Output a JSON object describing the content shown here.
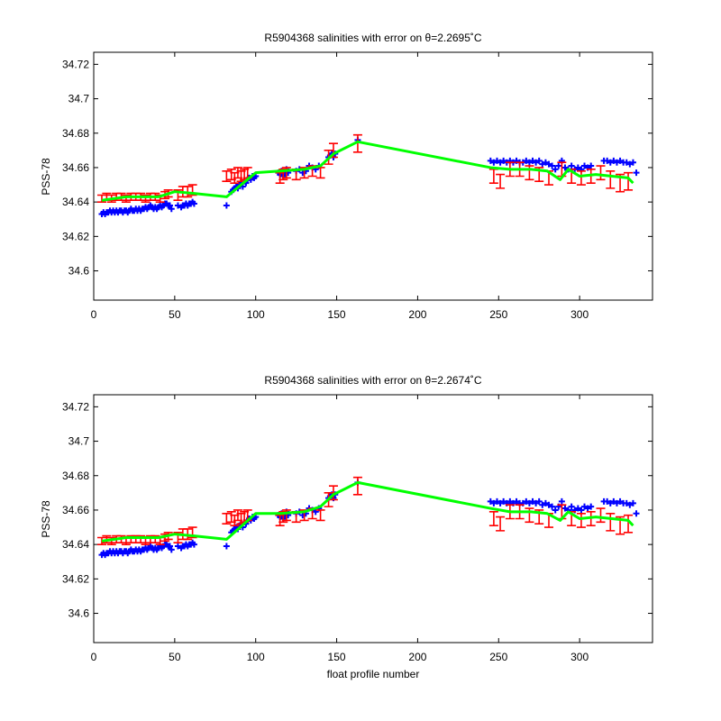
{
  "colors": {
    "background": "#ffffff",
    "axes": "#000000",
    "uncalibrated": "#0000ff",
    "calibrated": "#ff0000",
    "fit": "#00ff00"
  },
  "chart_data": [
    {
      "type": "scatter",
      "title": "R5904368 salinities with error on θ=2.2695˚C",
      "xlabel": "",
      "ylabel": "PSS-78",
      "xlim": [
        0,
        345
      ],
      "ylim": [
        34.583,
        34.727
      ],
      "xticks": [
        0,
        50,
        100,
        150,
        200,
        250,
        300
      ],
      "yticks": [
        34.6,
        34.62,
        34.64,
        34.66,
        34.68,
        34.7,
        34.72
      ],
      "xtick_labels": [
        "0",
        "50",
        "100",
        "150",
        "200",
        "250",
        "300"
      ],
      "ytick_labels": [
        "34.6",
        "34.62",
        "34.64",
        "34.66",
        "34.68",
        "34.7",
        "34.72"
      ],
      "grid": false,
      "series": [
        {
          "marker": "plus",
          "color": "#0000ff",
          "x": [
            5,
            6,
            7,
            8,
            9,
            10,
            11,
            12,
            13,
            14,
            15,
            16,
            17,
            18,
            19,
            20,
            21,
            22,
            23,
            24,
            25,
            26,
            27,
            28,
            29,
            30,
            31,
            32,
            33,
            34,
            35,
            36,
            37,
            38,
            39,
            40,
            41,
            42,
            43,
            44,
            45,
            46,
            47,
            48,
            52,
            54,
            55,
            56,
            57,
            58,
            59,
            60,
            61,
            62,
            82,
            85,
            86,
            87,
            88,
            89,
            90,
            91,
            92,
            93,
            94,
            95,
            96,
            97,
            98,
            99,
            100,
            114,
            115,
            116,
            117,
            118,
            119,
            120,
            125,
            127,
            129,
            131,
            133,
            135,
            137,
            139,
            145,
            146,
            147,
            148,
            149,
            163,
            245,
            247,
            249,
            251,
            253,
            255,
            257,
            259,
            261,
            263,
            265,
            267,
            269,
            271,
            273,
            275,
            277,
            279,
            281,
            283,
            285,
            287,
            289,
            291,
            293,
            295,
            297,
            299,
            301,
            303,
            305,
            307,
            315,
            317,
            319,
            321,
            323,
            325,
            327,
            329,
            331,
            333,
            335
          ],
          "y": [
            34.633,
            34.634,
            34.633,
            34.634,
            34.634,
            34.635,
            34.634,
            34.635,
            34.634,
            34.635,
            34.634,
            34.635,
            34.635,
            34.634,
            34.635,
            34.635,
            34.634,
            34.635,
            34.636,
            34.635,
            34.635,
            34.636,
            34.635,
            34.636,
            34.635,
            34.636,
            34.636,
            34.637,
            34.636,
            34.637,
            34.638,
            34.637,
            34.636,
            34.637,
            34.636,
            34.637,
            34.638,
            34.637,
            34.638,
            34.639,
            34.639,
            34.638,
            34.638,
            34.636,
            34.638,
            34.637,
            34.638,
            34.638,
            34.639,
            34.638,
            34.639,
            34.639,
            34.64,
            34.639,
            34.638,
            34.646,
            34.647,
            34.648,
            34.649,
            34.648,
            34.65,
            34.651,
            34.649,
            34.652,
            34.651,
            34.653,
            34.654,
            34.653,
            34.655,
            34.654,
            34.655,
            34.657,
            34.656,
            34.658,
            34.655,
            34.657,
            34.659,
            34.657,
            34.658,
            34.659,
            34.657,
            34.658,
            34.661,
            34.66,
            34.659,
            34.661,
            34.666,
            34.667,
            34.668,
            34.666,
            34.668,
            34.676,
            34.664,
            34.663,
            34.664,
            34.663,
            34.664,
            34.663,
            34.664,
            34.663,
            34.664,
            34.663,
            34.663,
            34.664,
            34.663,
            34.664,
            34.663,
            34.664,
            34.662,
            34.663,
            34.662,
            34.661,
            34.659,
            34.661,
            34.664,
            34.66,
            34.659,
            34.661,
            34.659,
            34.66,
            34.659,
            34.661,
            34.66,
            34.661,
            34.664,
            34.664,
            34.663,
            34.664,
            34.663,
            34.664,
            34.663,
            34.663,
            34.662,
            34.663,
            34.657
          ]
        },
        {
          "type": "errorbar",
          "color": "#ff0000",
          "x": [
            5,
            8,
            11,
            14,
            17,
            20,
            23,
            26,
            29,
            32,
            35,
            38,
            41,
            44,
            46,
            52,
            55,
            58,
            61,
            82,
            85,
            87,
            89,
            91,
            93,
            95,
            115,
            117,
            119,
            125,
            130,
            135,
            140,
            145,
            148,
            163,
            247,
            251,
            257,
            263,
            269,
            275,
            281,
            289,
            295,
            301,
            307,
            313,
            319,
            325,
            330
          ],
          "y": [
            34.642,
            34.643,
            34.642,
            34.643,
            34.643,
            34.642,
            34.643,
            34.643,
            34.643,
            34.642,
            34.643,
            34.643,
            34.642,
            34.644,
            34.645,
            34.644,
            34.646,
            34.646,
            34.647,
            34.655,
            34.656,
            34.654,
            34.657,
            34.655,
            34.656,
            34.657,
            34.654,
            34.656,
            34.657,
            34.656,
            34.657,
            34.658,
            34.657,
            34.666,
            34.67,
            34.674,
            34.655,
            34.652,
            34.659,
            34.659,
            34.657,
            34.656,
            34.654,
            34.659,
            34.655,
            34.654,
            34.655,
            34.657,
            34.653,
            34.651,
            34.652
          ],
          "err": [
            0.002,
            0.002,
            0.002,
            0.002,
            0.002,
            0.002,
            0.002,
            0.002,
            0.002,
            0.002,
            0.002,
            0.002,
            0.002,
            0.002,
            0.002,
            0.003,
            0.003,
            0.003,
            0.003,
            0.003,
            0.003,
            0.003,
            0.003,
            0.003,
            0.003,
            0.003,
            0.003,
            0.003,
            0.003,
            0.003,
            0.003,
            0.003,
            0.003,
            0.004,
            0.004,
            0.005,
            0.004,
            0.004,
            0.004,
            0.004,
            0.004,
            0.004,
            0.004,
            0.004,
            0.004,
            0.004,
            0.004,
            0.004,
            0.005,
            0.005,
            0.005
          ]
        },
        {
          "type": "line",
          "color": "#00ff00",
          "x": [
            5,
            20,
            40,
            50,
            62,
            82,
            100,
            115,
            130,
            140,
            148,
            163,
            245,
            257,
            270,
            280,
            288,
            293,
            300,
            310,
            320,
            330,
            333
          ],
          "y": [
            34.641,
            34.643,
            34.643,
            34.646,
            34.645,
            34.643,
            34.657,
            34.658,
            34.659,
            34.661,
            34.668,
            34.675,
            34.66,
            34.659,
            34.659,
            34.658,
            34.653,
            34.659,
            34.655,
            34.656,
            34.655,
            34.654,
            34.651
          ]
        }
      ]
    },
    {
      "type": "scatter",
      "title": "R5904368 salinities with error on θ=2.2674˚C",
      "xlabel": "float profile number",
      "ylabel": "PSS-78",
      "xlim": [
        0,
        345
      ],
      "ylim": [
        34.583,
        34.727
      ],
      "xticks": [
        0,
        50,
        100,
        150,
        200,
        250,
        300
      ],
      "yticks": [
        34.6,
        34.62,
        34.64,
        34.66,
        34.68,
        34.7,
        34.72
      ],
      "xtick_labels": [
        "0",
        "50",
        "100",
        "150",
        "200",
        "250",
        "300"
      ],
      "ytick_labels": [
        "34.6",
        "34.62",
        "34.64",
        "34.66",
        "34.68",
        "34.7",
        "34.72"
      ],
      "grid": false,
      "series": [
        {
          "marker": "plus",
          "color": "#0000ff",
          "x": [
            5,
            6,
            7,
            8,
            9,
            10,
            11,
            12,
            13,
            14,
            15,
            16,
            17,
            18,
            19,
            20,
            21,
            22,
            23,
            24,
            25,
            26,
            27,
            28,
            29,
            30,
            31,
            32,
            33,
            34,
            35,
            36,
            37,
            38,
            39,
            40,
            41,
            42,
            43,
            44,
            45,
            46,
            47,
            48,
            52,
            54,
            55,
            56,
            57,
            58,
            59,
            60,
            61,
            62,
            82,
            85,
            86,
            87,
            88,
            89,
            90,
            91,
            92,
            93,
            94,
            95,
            96,
            97,
            98,
            99,
            100,
            114,
            115,
            116,
            117,
            118,
            119,
            120,
            125,
            127,
            129,
            131,
            133,
            135,
            137,
            139,
            145,
            146,
            147,
            148,
            149,
            163,
            245,
            247,
            249,
            251,
            253,
            255,
            257,
            259,
            261,
            263,
            265,
            267,
            269,
            271,
            273,
            275,
            277,
            279,
            281,
            283,
            285,
            287,
            289,
            291,
            293,
            295,
            297,
            299,
            301,
            303,
            305,
            307,
            315,
            317,
            319,
            321,
            323,
            325,
            327,
            329,
            331,
            333,
            335
          ],
          "y": [
            34.634,
            34.635,
            34.634,
            34.635,
            34.635,
            34.636,
            34.635,
            34.636,
            34.635,
            34.636,
            34.635,
            34.636,
            34.636,
            34.635,
            34.636,
            34.636,
            34.635,
            34.636,
            34.637,
            34.636,
            34.636,
            34.637,
            34.636,
            34.637,
            34.636,
            34.637,
            34.637,
            34.638,
            34.637,
            34.638,
            34.639,
            34.638,
            34.637,
            34.638,
            34.637,
            34.638,
            34.639,
            34.638,
            34.639,
            34.64,
            34.64,
            34.639,
            34.639,
            34.637,
            34.639,
            34.638,
            34.639,
            34.639,
            34.64,
            34.639,
            34.64,
            34.64,
            34.641,
            34.64,
            34.639,
            34.647,
            34.648,
            34.649,
            34.65,
            34.649,
            34.651,
            34.652,
            34.65,
            34.653,
            34.652,
            34.654,
            34.655,
            34.654,
            34.656,
            34.655,
            34.656,
            34.657,
            34.656,
            34.658,
            34.655,
            34.657,
            34.659,
            34.657,
            34.658,
            34.659,
            34.657,
            34.658,
            34.661,
            34.66,
            34.659,
            34.661,
            34.667,
            34.668,
            34.669,
            34.667,
            34.669,
            34.676,
            34.665,
            34.664,
            34.665,
            34.664,
            34.665,
            34.664,
            34.665,
            34.664,
            34.665,
            34.664,
            34.664,
            34.665,
            34.664,
            34.665,
            34.664,
            34.665,
            34.663,
            34.664,
            34.663,
            34.662,
            34.66,
            34.662,
            34.665,
            34.661,
            34.66,
            34.662,
            34.66,
            34.661,
            34.66,
            34.662,
            34.661,
            34.662,
            34.665,
            34.665,
            34.664,
            34.665,
            34.664,
            34.665,
            34.664,
            34.664,
            34.663,
            34.664,
            34.658
          ]
        },
        {
          "type": "errorbar",
          "color": "#ff0000",
          "x": [
            5,
            8,
            11,
            14,
            17,
            20,
            23,
            26,
            29,
            32,
            35,
            38,
            41,
            44,
            46,
            52,
            55,
            58,
            61,
            82,
            85,
            87,
            89,
            91,
            93,
            95,
            115,
            117,
            119,
            125,
            130,
            135,
            140,
            145,
            148,
            163,
            247,
            251,
            257,
            263,
            269,
            275,
            281,
            289,
            295,
            301,
            307,
            313,
            319,
            325,
            330
          ],
          "y": [
            34.642,
            34.643,
            34.642,
            34.643,
            34.643,
            34.642,
            34.643,
            34.643,
            34.643,
            34.642,
            34.643,
            34.643,
            34.642,
            34.644,
            34.645,
            34.644,
            34.646,
            34.646,
            34.647,
            34.655,
            34.656,
            34.654,
            34.657,
            34.655,
            34.656,
            34.657,
            34.654,
            34.656,
            34.657,
            34.656,
            34.657,
            34.658,
            34.657,
            34.666,
            34.67,
            34.674,
            34.655,
            34.652,
            34.659,
            34.659,
            34.657,
            34.656,
            34.654,
            34.659,
            34.655,
            34.654,
            34.655,
            34.657,
            34.653,
            34.651,
            34.652
          ],
          "err": [
            0.002,
            0.002,
            0.002,
            0.002,
            0.002,
            0.002,
            0.002,
            0.002,
            0.002,
            0.002,
            0.002,
            0.002,
            0.002,
            0.002,
            0.002,
            0.003,
            0.003,
            0.003,
            0.003,
            0.003,
            0.003,
            0.003,
            0.003,
            0.003,
            0.003,
            0.003,
            0.003,
            0.003,
            0.003,
            0.003,
            0.003,
            0.003,
            0.003,
            0.004,
            0.004,
            0.005,
            0.004,
            0.004,
            0.004,
            0.004,
            0.004,
            0.004,
            0.004,
            0.004,
            0.004,
            0.004,
            0.004,
            0.004,
            0.005,
            0.005,
            0.005
          ]
        },
        {
          "type": "line",
          "color": "#00ff00",
          "x": [
            5,
            20,
            40,
            50,
            62,
            82,
            100,
            115,
            130,
            140,
            148,
            163,
            245,
            257,
            270,
            280,
            288,
            293,
            300,
            310,
            320,
            330,
            333
          ],
          "y": [
            34.642,
            34.644,
            34.644,
            34.646,
            34.645,
            34.643,
            34.658,
            34.658,
            34.659,
            34.662,
            34.669,
            34.676,
            34.661,
            34.659,
            34.659,
            34.658,
            34.654,
            34.659,
            34.655,
            34.656,
            34.655,
            34.654,
            34.651
          ]
        }
      ]
    }
  ]
}
